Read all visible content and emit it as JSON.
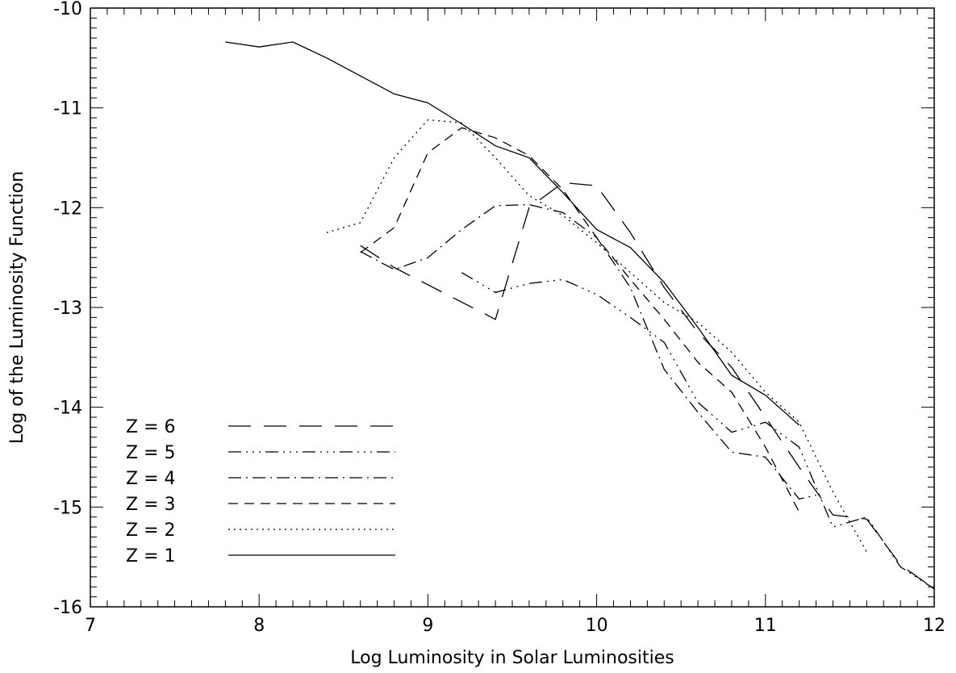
{
  "chart_data": {
    "type": "line",
    "xlabel": "Log Luminosity in Solar Luminosities",
    "ylabel": "Log of the Luminosity Function",
    "xlim": [
      7,
      12
    ],
    "ylim": [
      -16,
      -10
    ],
    "x_ticks": [
      "7",
      "8",
      "9",
      "10",
      "11",
      "12"
    ],
    "y_ticks": [
      "-10",
      "-11",
      "-12",
      "-13",
      "-14",
      "-15",
      "-16"
    ],
    "grid": false,
    "legend_position": "bottom-left",
    "series": [
      {
        "name": "Z  =  6",
        "style": "long-dash",
        "x": [
          8.6,
          8.8,
          9.4,
          9.6,
          9.8,
          10.0,
          10.2,
          10.4,
          10.6,
          10.8,
          11.0,
          11.2,
          11.4,
          11.6,
          11.8,
          12.0
        ],
        "y": [
          -12.38,
          -12.6,
          -13.12,
          -12.0,
          -11.75,
          -11.78,
          -12.25,
          -12.8,
          -13.25,
          -13.6,
          -14.1,
          -14.6,
          -15.08,
          -15.12,
          -15.58,
          -15.82
        ]
      },
      {
        "name": "Z  =  5",
        "style": "dash-dot-dot-dot",
        "x": [
          9.2,
          9.4,
          9.6,
          9.8,
          10.0,
          10.2,
          10.4,
          10.6,
          10.8,
          11.0,
          11.2,
          11.4,
          11.6,
          11.8,
          12.0
        ],
        "y": [
          -12.65,
          -12.85,
          -12.76,
          -12.72,
          -12.87,
          -13.1,
          -13.35,
          -13.95,
          -14.25,
          -14.15,
          -14.4,
          -15.2,
          -15.1,
          -15.6,
          -15.82
        ]
      },
      {
        "name": "Z  =  4",
        "style": "dash-dot",
        "x": [
          8.6,
          8.8,
          9.0,
          9.2,
          9.4,
          9.6,
          9.8,
          10.0,
          10.2,
          10.4,
          10.6,
          10.8,
          11.0,
          11.2,
          11.3
        ],
        "y": [
          -12.44,
          -12.62,
          -12.5,
          -12.22,
          -11.98,
          -11.97,
          -12.05,
          -12.3,
          -12.8,
          -13.62,
          -14.05,
          -14.45,
          -14.5,
          -14.92,
          -14.88
        ]
      },
      {
        "name": "Z  =  3",
        "style": "short-dash",
        "x": [
          8.6,
          8.8,
          9.0,
          9.2,
          9.4,
          9.6,
          9.8,
          10.0,
          10.2,
          10.4,
          10.6,
          10.8,
          11.0,
          11.2
        ],
        "y": [
          -12.45,
          -12.2,
          -11.45,
          -11.2,
          -11.3,
          -11.48,
          -11.82,
          -12.3,
          -12.72,
          -13.12,
          -13.55,
          -13.85,
          -14.4,
          -15.05
        ]
      },
      {
        "name": "Z  =  2",
        "style": "dotted",
        "x": [
          8.4,
          8.6,
          8.8,
          9.0,
          9.2,
          9.4,
          9.6,
          9.8,
          10.0,
          10.2,
          10.4,
          10.6,
          10.8,
          11.0,
          11.2,
          11.4,
          11.6
        ],
        "y": [
          -12.25,
          -12.15,
          -11.5,
          -11.12,
          -11.15,
          -11.5,
          -11.88,
          -12.08,
          -12.35,
          -12.65,
          -12.95,
          -13.15,
          -13.45,
          -13.85,
          -14.15,
          -14.85,
          -15.45
        ]
      },
      {
        "name": "Z  =  1",
        "style": "solid",
        "x": [
          7.8,
          8.0,
          8.2,
          8.4,
          8.6,
          8.8,
          9.0,
          9.2,
          9.4,
          9.6,
          9.8,
          10.0,
          10.2,
          10.4,
          10.6,
          10.8,
          11.0,
          11.2
        ],
        "y": [
          -10.34,
          -10.39,
          -10.34,
          -10.5,
          -10.68,
          -10.86,
          -10.95,
          -11.16,
          -11.38,
          -11.5,
          -11.85,
          -12.22,
          -12.4,
          -12.75,
          -13.2,
          -13.68,
          -13.88,
          -14.18
        ]
      }
    ]
  }
}
